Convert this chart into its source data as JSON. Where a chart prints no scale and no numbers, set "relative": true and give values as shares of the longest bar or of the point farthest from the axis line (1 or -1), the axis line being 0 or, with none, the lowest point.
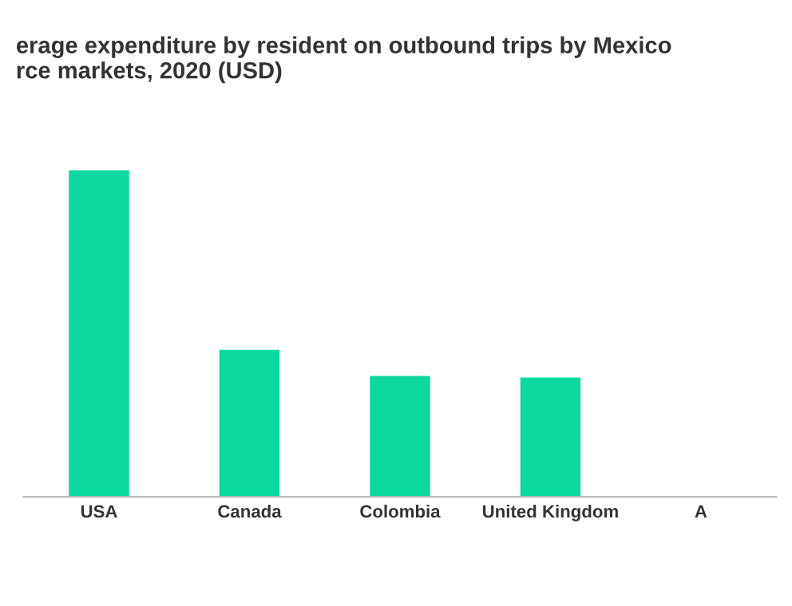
{
  "chart_data": {
    "type": "bar",
    "title": "erage expenditure by resident on outbound trips by Mexico\nrce markets, 2020 (USD)",
    "categories": [
      "USA",
      "Canada",
      "Colombia",
      "United Kingdom",
      "A"
    ],
    "values": [
      1,
      0.45,
      0.37,
      0.365,
      null
    ],
    "color": "#0bd9a0",
    "relative": true
  }
}
